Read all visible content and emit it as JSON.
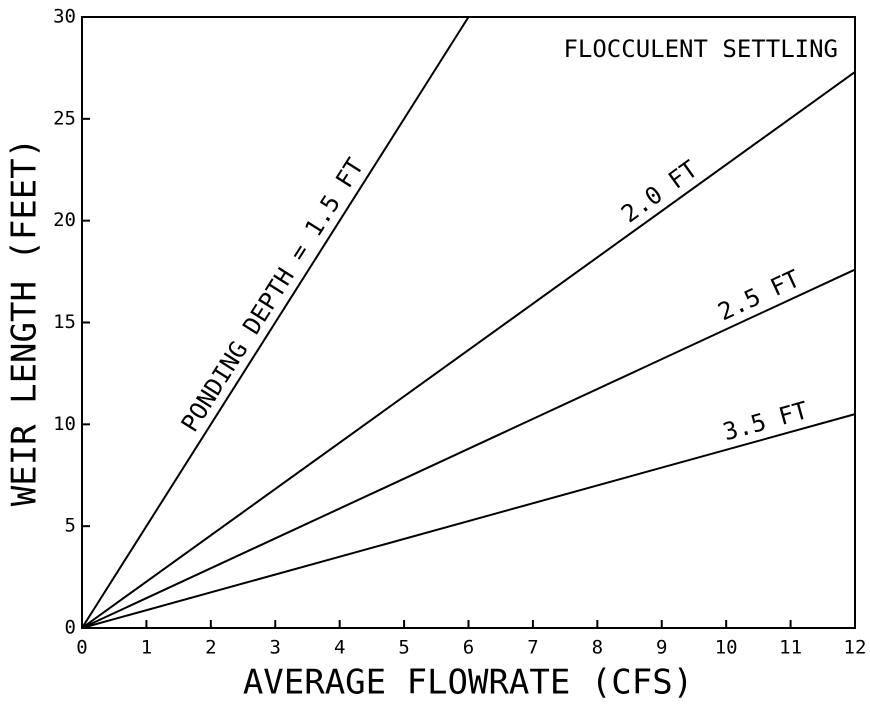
{
  "chart_data": {
    "type": "line",
    "x_label": "AVERAGE FLOWRATE (CFS)",
    "y_label": "WEIR LENGTH (FEET)",
    "annotation": "FLOCCULENT SETTLING",
    "xlim": [
      0,
      12
    ],
    "xticks": [
      0,
      1,
      2,
      3,
      4,
      5,
      6,
      7,
      8,
      9,
      10,
      11,
      12
    ],
    "ylim": [
      0,
      30
    ],
    "yticks": [
      0,
      5,
      10,
      15,
      20,
      25,
      30
    ],
    "grid": false,
    "series": [
      {
        "name": "PONDING DEPTH = 1.5 FT",
        "color": "#000000",
        "x": [
          0,
          6
        ],
        "values": [
          0,
          30
        ]
      },
      {
        "name": "2.0 FT",
        "color": "#000000",
        "x": [
          0,
          12
        ],
        "values": [
          0,
          27.3
        ]
      },
      {
        "name": "2.5 FT",
        "color": "#000000",
        "x": [
          0,
          12
        ],
        "values": [
          0,
          17.6
        ]
      },
      {
        "name": "3.5 FT",
        "color": "#000000",
        "x": [
          0,
          12
        ],
        "values": [
          0,
          10.5
        ]
      }
    ]
  }
}
